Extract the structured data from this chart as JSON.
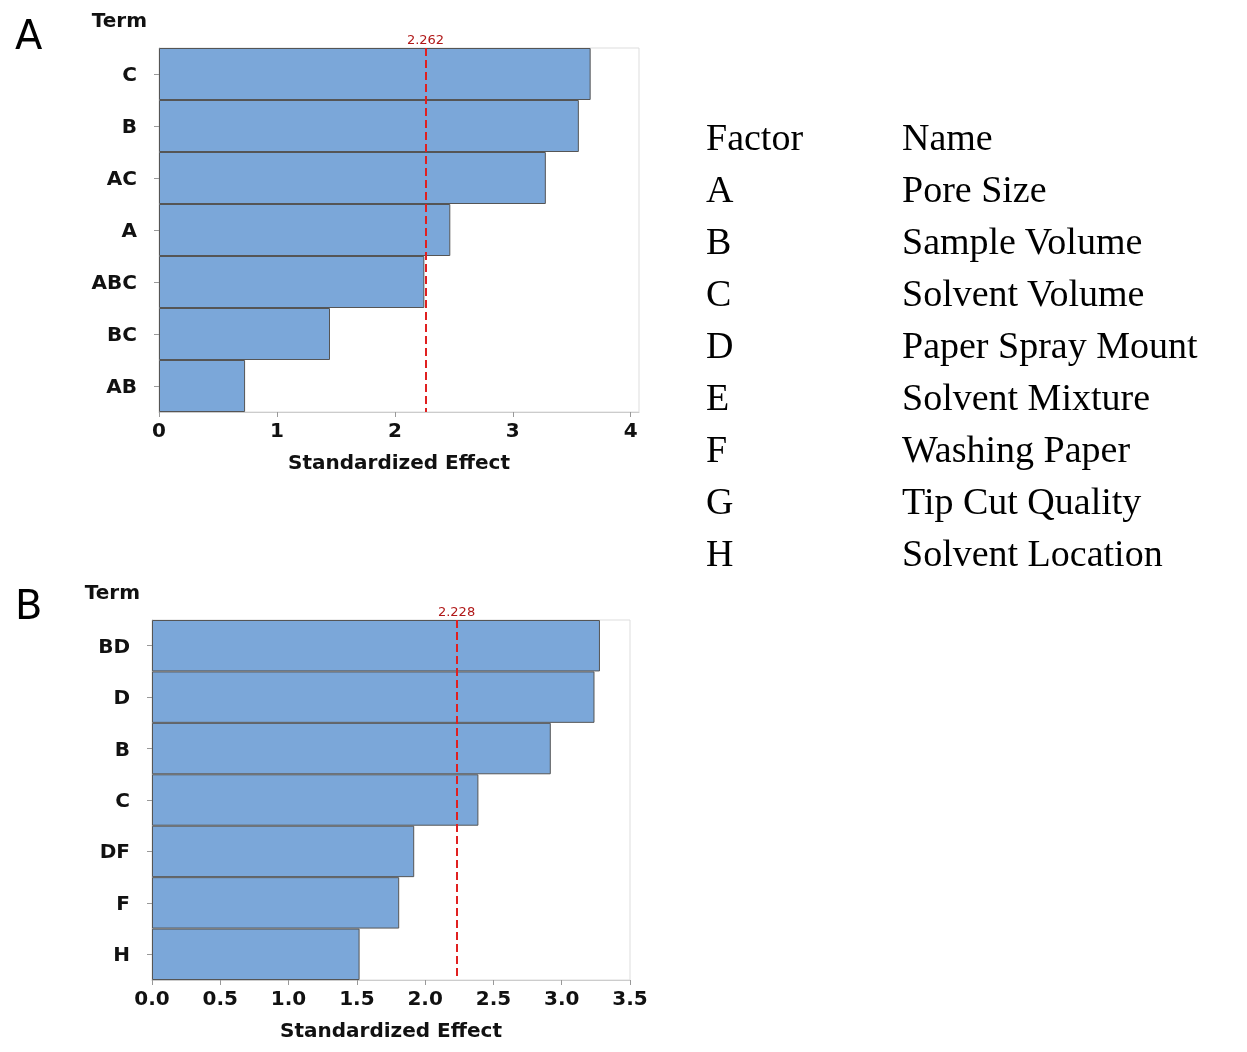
{
  "chart_data": [
    {
      "type": "bar",
      "orientation": "horizontal",
      "title": "A",
      "ylabel": "Term",
      "xlabel": "Standardized Effect",
      "categories": [
        "C",
        "B",
        "AC",
        "A",
        "ABC",
        "BC",
        "AB"
      ],
      "values": [
        3.66,
        3.56,
        3.28,
        2.47,
        2.25,
        1.45,
        0.73
      ],
      "color": "#7ba7d9",
      "xlim": [
        0,
        4.07
      ],
      "xticks": [
        0,
        1,
        2,
        3,
        4
      ],
      "grid": false,
      "ref_lines": [
        {
          "axis": "x",
          "value": 2.262,
          "label": "2.262",
          "color": "#e02020",
          "line_style": "dashed"
        }
      ]
    },
    {
      "type": "bar",
      "orientation": "horizontal",
      "title": "B",
      "ylabel": "Term",
      "xlabel": "Standardized Effect",
      "categories": [
        "BD",
        "D",
        "B",
        "C",
        "DF",
        "F",
        "H"
      ],
      "values": [
        3.28,
        3.24,
        2.92,
        2.39,
        1.92,
        1.81,
        1.52
      ],
      "color": "#7ba7d9",
      "xlim": [
        0,
        3.5
      ],
      "xticks": [
        {
          "value": 0,
          "label": "0.0"
        },
        0.5,
        {
          "value": 1,
          "label": "1.0"
        },
        1.5,
        {
          "value": 2,
          "label": "2.0"
        },
        2.5,
        {
          "value": 3,
          "label": "3.0"
        },
        3.5
      ],
      "grid": false,
      "ref_lines": [
        {
          "axis": "x",
          "value": 2.228,
          "label": "2.228",
          "color": "#e02020",
          "line_style": "dashed"
        }
      ]
    },
    {
      "type": "other",
      "annotations": [
        "Factor",
        "Name",
        "A",
        "Pore Size",
        "B",
        "Sample Volume",
        "C",
        "Solvent Volume",
        "D",
        "Paper Spray Mount",
        "E",
        "Solvent Mixture",
        "F",
        "Washing Paper",
        "G",
        "Tip Cut Quality",
        "H",
        "Solvent Location"
      ]
    }
  ]
}
